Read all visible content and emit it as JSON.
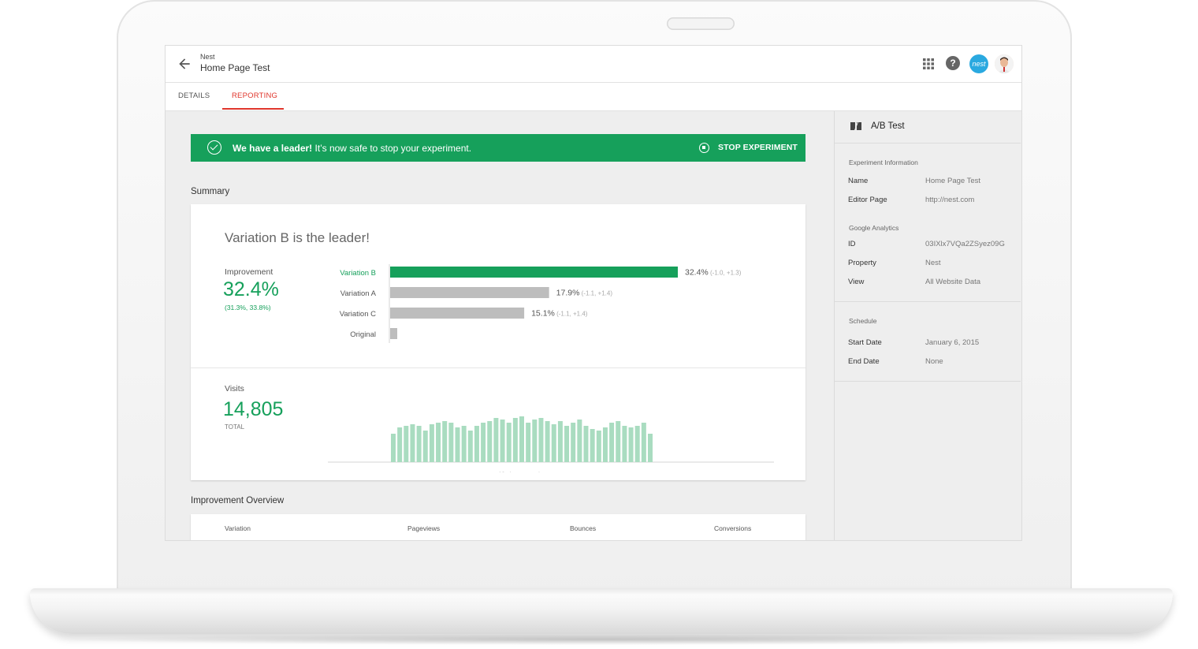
{
  "header": {
    "subtitle": "Nest",
    "title": "Home Page Test",
    "help_glyph": "?",
    "account_badge": "nest",
    "icons": [
      "back-arrow-icon",
      "apps-grid-icon",
      "help-icon",
      "user-avatar"
    ]
  },
  "tabs": [
    {
      "label": "DETAILS",
      "active": false
    },
    {
      "label": "REPORTING",
      "active": true
    }
  ],
  "banner": {
    "bold": "We have a leader!",
    "message": " It’s now safe to stop your experiment.",
    "action": "STOP EXPERIMENT",
    "color": "#16a05b"
  },
  "summary": {
    "section_title": "Summary",
    "headline": "Variation B is the leader!",
    "improvement_label": "Improvement",
    "improvement_value": "32.4%",
    "improvement_range": "(31.3%, 33.8%)",
    "visits_label": "Visits",
    "visits_value": "14,805",
    "visits_total_label": "TOTAL",
    "visits_caption": "40 days running"
  },
  "chart_data": [
    {
      "type": "bar",
      "orientation": "horizontal",
      "categories": [
        "Variation B",
        "Variation A",
        "Variation C",
        "Original"
      ],
      "values": [
        32.4,
        17.9,
        15.1,
        0.8
      ],
      "value_labels": [
        "32.4%",
        "17.9%",
        "15.1%",
        ""
      ],
      "intervals": [
        "(-1.0, +1.3)",
        "(-1.1, +1.4)",
        "(-1.1, +1.4)",
        ""
      ],
      "colors": [
        "#16a05b",
        "#bdbdbd",
        "#bdbdbd",
        "#bdbdbd"
      ],
      "highlight": "Variation B"
    },
    {
      "type": "bar",
      "xlabel": "40 days running",
      "values": [
        36,
        44,
        46,
        48,
        46,
        40,
        48,
        50,
        52,
        50,
        44,
        46,
        40,
        46,
        50,
        52,
        56,
        54,
        50,
        56,
        58,
        50,
        54,
        56,
        52,
        48,
        52,
        46,
        50,
        54,
        46,
        42,
        40,
        44,
        50,
        52,
        46,
        44,
        46,
        50,
        36
      ],
      "color": "#a9dcc0"
    }
  ],
  "overview": {
    "section_title": "Improvement Overview",
    "columns": [
      "Variation",
      "Pageviews",
      "Bounces",
      "Conversions"
    ]
  },
  "sidebar": {
    "title": "A/B Test",
    "experiment_info": {
      "heading": "Experiment Information",
      "rows": [
        {
          "key": "Name",
          "value": "Home Page Test"
        },
        {
          "key": "Editor Page",
          "value": "http://nest.com"
        }
      ]
    },
    "analytics": {
      "heading": "Google Analytics",
      "rows": [
        {
          "key": "ID",
          "value": "03IXlx7VQa2ZSyez09G"
        },
        {
          "key": "Property",
          "value": "Nest"
        },
        {
          "key": "View",
          "value": "All Website Data"
        }
      ]
    },
    "schedule": {
      "heading": "Schedule",
      "rows": [
        {
          "key": "Start Date",
          "value": "January 6, 2015"
        },
        {
          "key": "End Date",
          "value": "None"
        }
      ]
    }
  }
}
